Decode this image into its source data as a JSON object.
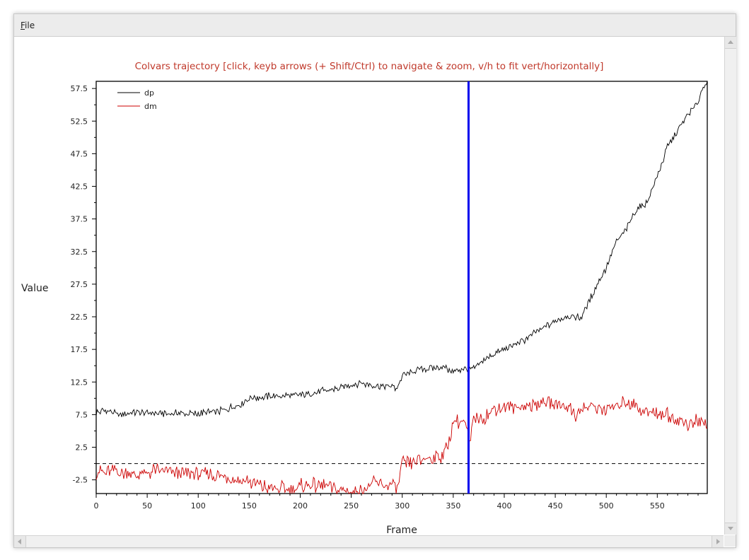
{
  "window": {
    "menu": {
      "file_label_first": "F",
      "file_label_rest": "ile"
    }
  },
  "chart_data": {
    "type": "line",
    "title": "Colvars trajectory   [click, keyb arrows (+ Shift/Ctrl) to navigate & zoom, v/h to fit vert/horizontally]",
    "xlabel": "Frame",
    "ylabel": "Value",
    "xlim": [
      0,
      599
    ],
    "ylim": [
      -4.6,
      58.6
    ],
    "xticks": [
      0,
      50,
      100,
      150,
      200,
      250,
      300,
      350,
      400,
      450,
      500,
      550
    ],
    "yticks": [
      -2.5,
      2.5,
      7.5,
      12.5,
      17.5,
      22.5,
      27.5,
      32.5,
      37.5,
      42.5,
      47.5,
      52.5,
      57.5
    ],
    "ytick_labels": [
      "-2.5",
      "2.5",
      "7.5",
      "12.5",
      "17.5",
      "22.5",
      "27.5",
      "32.5",
      "37.5",
      "42.5",
      "47.5",
      "52.5",
      "57.5"
    ],
    "zero_line": 0,
    "cursor_frame": 365,
    "legend": "top-left",
    "series": [
      {
        "name": "dp",
        "color": "#000000",
        "x": [
          0,
          10,
          20,
          40,
          60,
          80,
          100,
          120,
          130,
          140,
          150,
          170,
          200,
          230,
          250,
          260,
          270,
          290,
          295,
          300,
          320,
          340,
          350,
          360,
          370,
          380,
          400,
          420,
          440,
          460,
          470,
          475,
          480,
          490,
          500,
          505,
          510,
          520,
          530,
          540,
          550,
          560,
          570,
          580,
          590,
          595,
          599
        ],
        "values": [
          7.8,
          8.2,
          7.5,
          7.8,
          7.7,
          7.7,
          7.6,
          8.0,
          8.5,
          9.0,
          10.0,
          10.3,
          10.5,
          11.3,
          12.0,
          12.4,
          12.0,
          11.8,
          11.5,
          13.5,
          14.5,
          14.8,
          14.0,
          14.5,
          14.5,
          16.0,
          17.5,
          19.0,
          21.0,
          22.5,
          22.5,
          22.3,
          24.0,
          27.0,
          30.0,
          32.0,
          34.0,
          36.0,
          39.0,
          40.0,
          44.0,
          48.5,
          51.0,
          53.5,
          55.5,
          57.8,
          58.5
        ]
      },
      {
        "name": "dm",
        "color": "#cc0000",
        "x": [
          0,
          20,
          40,
          60,
          80,
          100,
          130,
          150,
          175,
          200,
          220,
          240,
          260,
          270,
          290,
          295,
          300,
          310,
          320,
          330,
          340,
          345,
          350,
          360,
          364,
          366,
          370,
          380,
          390,
          400,
          420,
          440,
          460,
          470,
          480,
          500,
          520,
          540,
          560,
          580,
          590,
          599
        ],
        "values": [
          -1.5,
          -1.2,
          -1.7,
          -1.0,
          -1.5,
          -1.7,
          -2.0,
          -2.8,
          -4.0,
          -3.5,
          -3.3,
          -4.0,
          -4.3,
          -3.0,
          -3.3,
          -4.0,
          0.0,
          0.2,
          0.5,
          0.8,
          1.5,
          2.5,
          6.5,
          6.5,
          4.5,
          2.5,
          7.0,
          7.0,
          8.5,
          8.5,
          8.8,
          9.3,
          9.0,
          7.5,
          8.8,
          8.2,
          9.5,
          8.0,
          7.5,
          6.0,
          6.5,
          6.0
        ]
      }
    ]
  }
}
